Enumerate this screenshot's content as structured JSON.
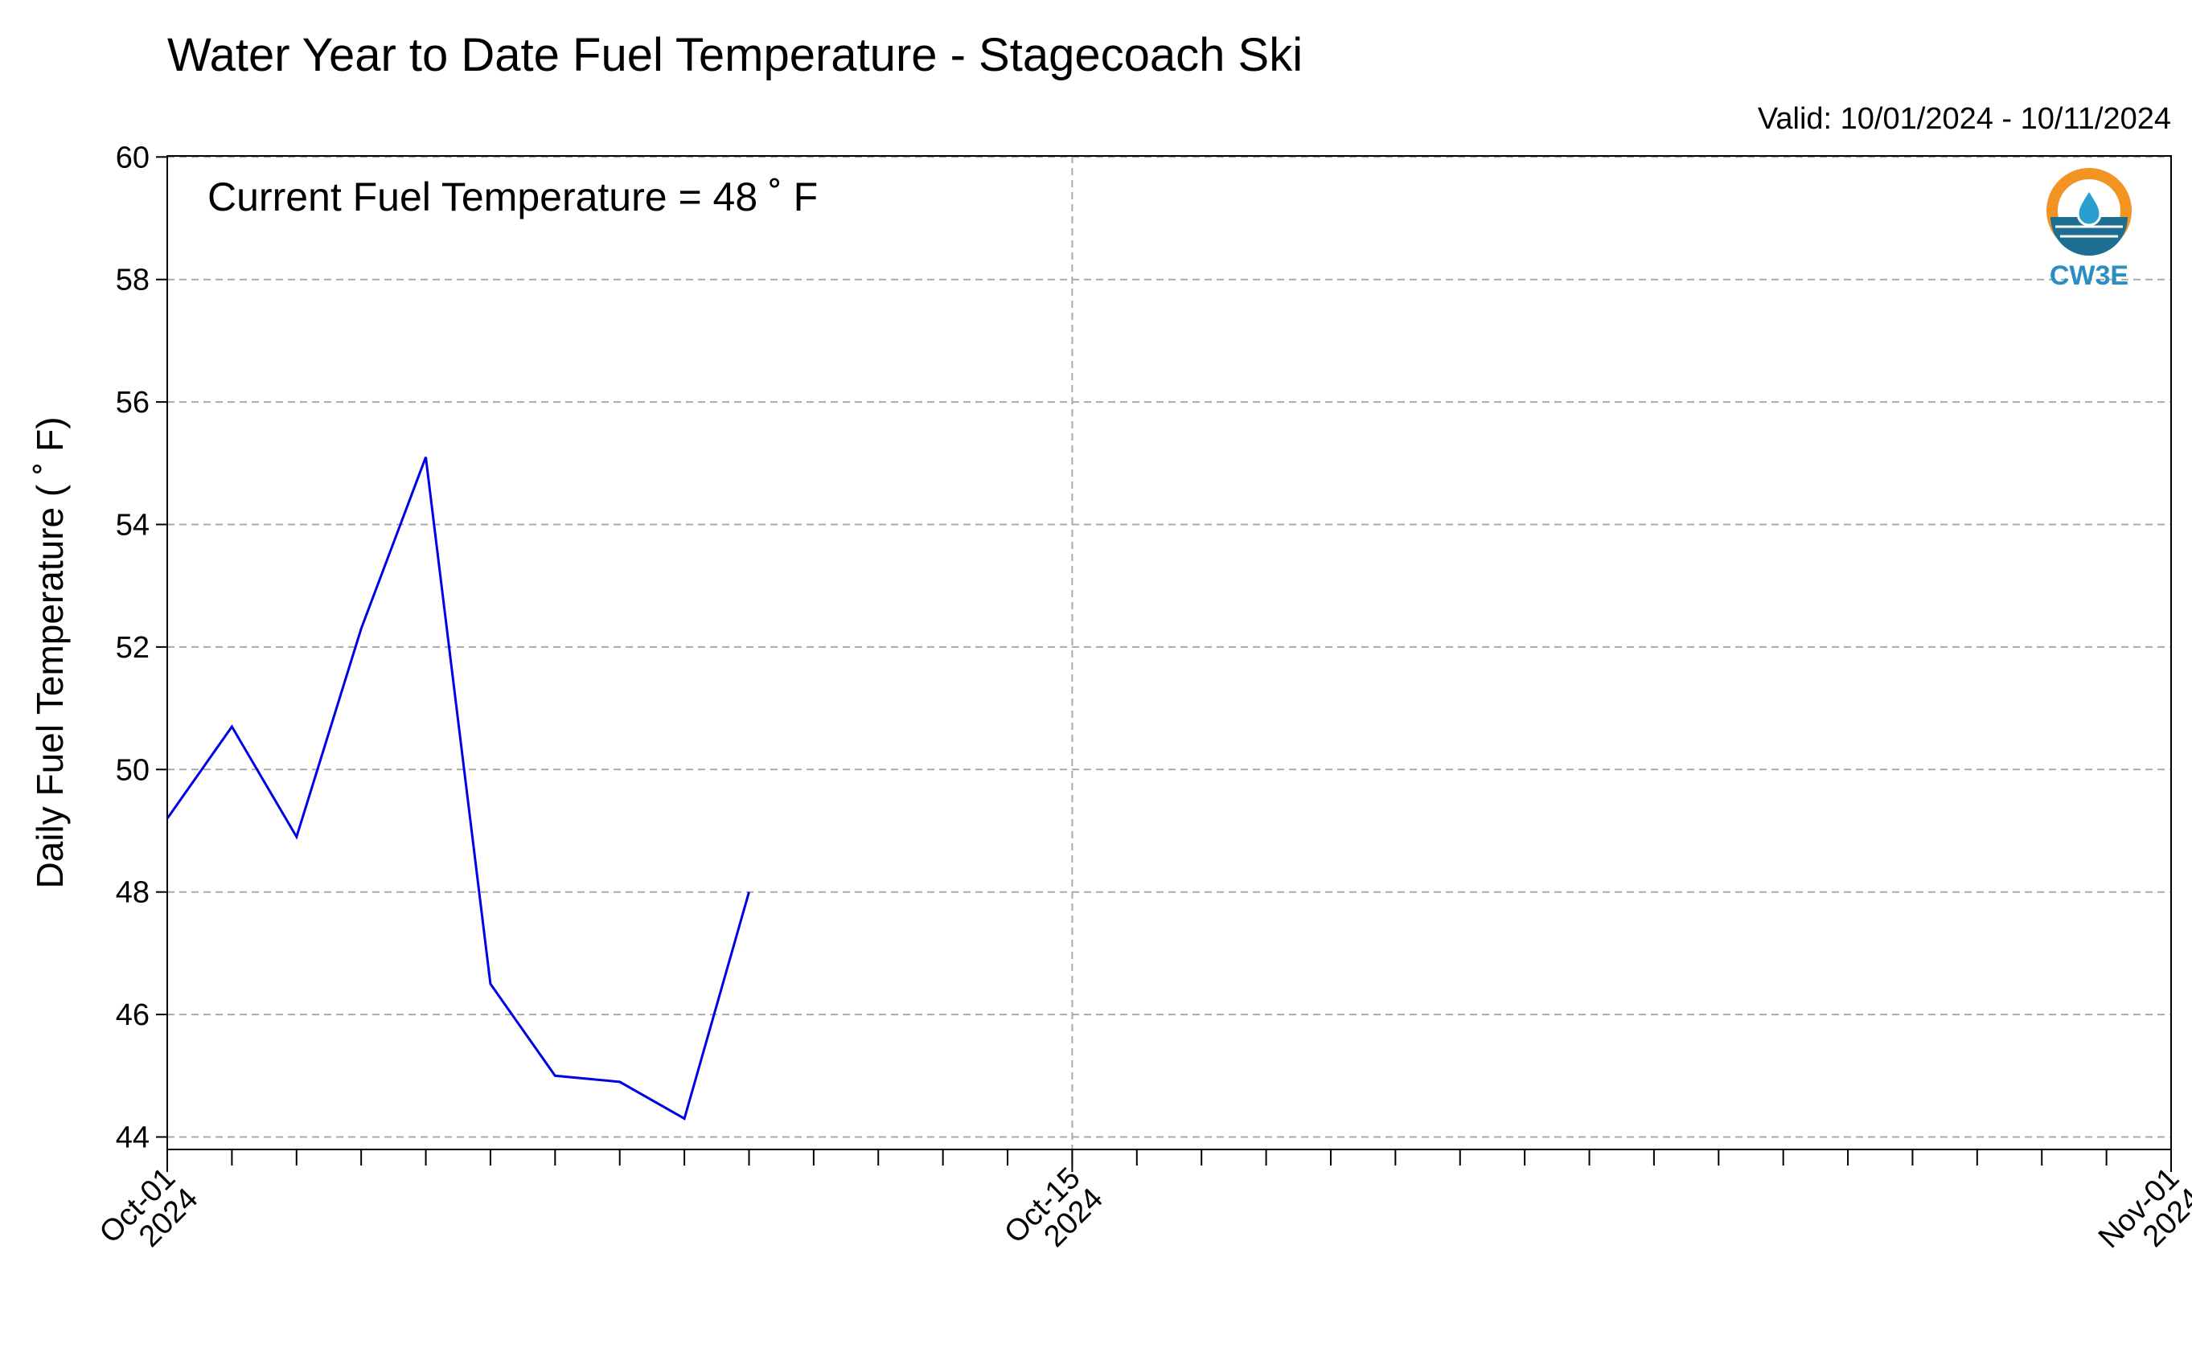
{
  "chart_data": {
    "type": "line",
    "title": "Water Year to Date Fuel Temperature - Stagecoach Ski",
    "subtitle": "Valid: 10/01/2024 - 10/11/2024",
    "ylabel": "Daily Fuel Temperature ( ˚ F)",
    "xlabel": "",
    "annotation": "Current Fuel Temperature = 48  ˚ F",
    "logo_text": "CW3E",
    "xlim": [
      "2024-10-01",
      "2024-11-01"
    ],
    "ylim": [
      44,
      60
    ],
    "yticks": [
      44,
      46,
      48,
      50,
      52,
      54,
      56,
      58,
      60
    ],
    "xtick_labels": [
      {
        "date": "2024-10-01",
        "label": "Oct-01\n2024"
      },
      {
        "date": "2024-10-15",
        "label": "Oct-15\n2024"
      },
      {
        "date": "2024-11-01",
        "label": "Nov-01\n2024"
      }
    ],
    "grid": true,
    "line_color": "#0000e6",
    "series": [
      {
        "x": [
          "2024-10-01",
          "2024-10-02",
          "2024-10-03",
          "2024-10-04",
          "2024-10-05",
          "2024-10-06",
          "2024-10-07",
          "2024-10-08",
          "2024-10-09",
          "2024-10-10"
        ],
        "values": [
          49.2,
          50.7,
          48.9,
          52.3,
          55.1,
          46.5,
          45.0,
          44.9,
          44.3,
          48.0
        ]
      }
    ]
  }
}
